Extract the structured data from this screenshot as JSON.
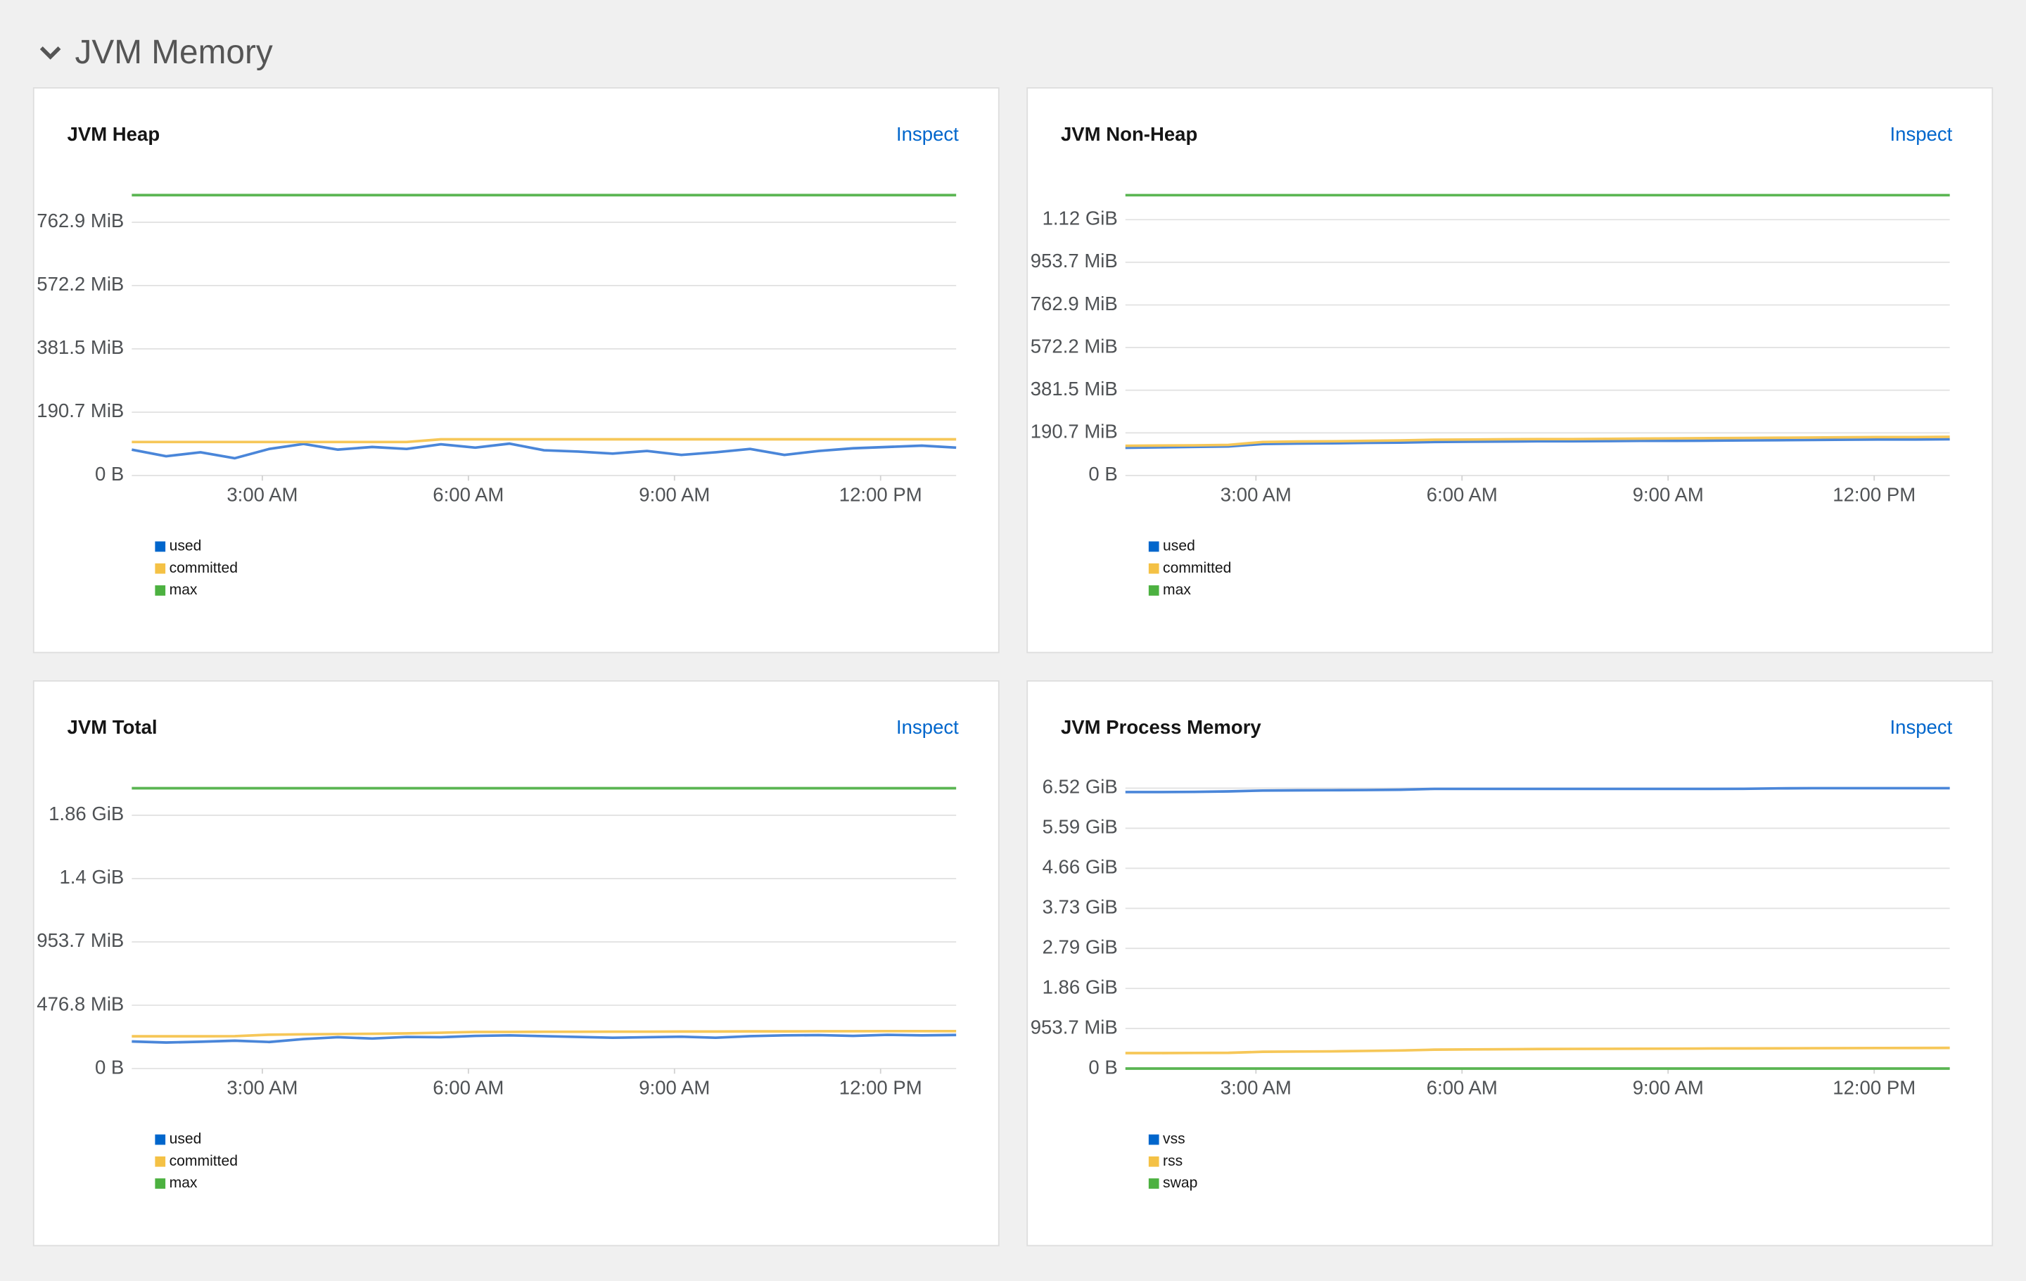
{
  "section_title": "JVM Memory",
  "chart_data": [
    {
      "type": "line",
      "title": "JVM Heap",
      "link": "Inspect",
      "grid": true,
      "x": [
        1.1,
        1.6,
        2.1,
        2.6,
        3.1,
        3.6,
        4.1,
        4.6,
        5.1,
        5.6,
        6.1,
        6.6,
        7.1,
        7.6,
        8.1,
        8.6,
        9.1,
        9.6,
        10.1,
        10.6,
        11.1,
        11.6,
        12.1,
        12.6,
        13.1
      ],
      "xlim": [
        1.1,
        13.1
      ],
      "xticks": [
        {
          "value": 3,
          "label": "3:00 AM"
        },
        {
          "value": 6,
          "label": "6:00 AM"
        },
        {
          "value": 9,
          "label": "9:00 AM"
        },
        {
          "value": 12,
          "label": "12:00 PM"
        }
      ],
      "ylim": [
        0,
        864
      ],
      "yticks": [
        {
          "value": 0,
          "label": "0 B"
        },
        {
          "value": 190.7,
          "label": "190.7 MiB"
        },
        {
          "value": 381.5,
          "label": "381.5 MiB"
        },
        {
          "value": 572.2,
          "label": "572.2 MiB"
        },
        {
          "value": 762.9,
          "label": "762.9 MiB"
        }
      ],
      "series": [
        {
          "name": "used",
          "color": "#4a86d9",
          "legend_color": "#0066cc",
          "values": [
            78,
            58,
            70,
            52,
            80,
            95,
            78,
            86,
            80,
            94,
            84,
            96,
            76,
            72,
            66,
            74,
            62,
            70,
            80,
            62,
            74,
            82,
            86,
            90,
            84
          ]
        },
        {
          "name": "committed",
          "color": "#f6c758",
          "legend_color": "#f4c145",
          "values": [
            101,
            101,
            101,
            101,
            101,
            101,
            101,
            101,
            101,
            109,
            109,
            109,
            109,
            109,
            109,
            109,
            109,
            109,
            109,
            109,
            109,
            109,
            109,
            109,
            109
          ]
        },
        {
          "name": "max",
          "color": "#5ab552",
          "legend_color": "#4cb140",
          "values": [
            844.5,
            844.5,
            844.5,
            844.5,
            844.5,
            844.5,
            844.5,
            844.5,
            844.5,
            844.5,
            844.5,
            844.5,
            844.5,
            844.5,
            844.5,
            844.5,
            844.5,
            844.5,
            844.5,
            844.5,
            844.5,
            844.5,
            844.5,
            844.5,
            844.5
          ]
        }
      ]
    },
    {
      "type": "line",
      "title": "JVM Non-Heap",
      "link": "Inspect",
      "grid": true,
      "x": [
        1.1,
        1.6,
        2.1,
        2.6,
        3.1,
        3.6,
        4.1,
        4.6,
        5.1,
        5.6,
        6.1,
        6.6,
        7.1,
        7.6,
        8.1,
        8.6,
        9.1,
        9.6,
        10.1,
        10.6,
        11.1,
        11.6,
        12.1,
        12.6,
        13.1
      ],
      "xlim": [
        1.1,
        13.1
      ],
      "xticks": [
        {
          "value": 3,
          "label": "3:00 AM"
        },
        {
          "value": 6,
          "label": "6:00 AM"
        },
        {
          "value": 9,
          "label": "9:00 AM"
        },
        {
          "value": 12,
          "label": "12:00 PM"
        }
      ],
      "ylim": [
        0,
        1283
      ],
      "yticks": [
        {
          "value": 0,
          "label": "0 B"
        },
        {
          "value": 190.7,
          "label": "190.7 MiB"
        },
        {
          "value": 381.5,
          "label": "381.5 MiB"
        },
        {
          "value": 572.2,
          "label": "572.2 MiB"
        },
        {
          "value": 762.9,
          "label": "762.9 MiB"
        },
        {
          "value": 953.7,
          "label": "953.7 MiB"
        },
        {
          "value": 1144.4,
          "label": "1.12 GiB"
        }
      ],
      "series": [
        {
          "name": "used",
          "color": "#4a86d9",
          "legend_color": "#0066cc",
          "values": [
            124,
            126,
            128,
            130,
            141,
            143,
            144,
            146,
            147,
            150,
            151,
            152,
            153,
            153,
            154,
            155,
            155,
            156,
            157,
            158,
            159,
            160,
            161,
            161,
            162
          ]
        },
        {
          "name": "committed",
          "color": "#f6c758",
          "legend_color": "#f4c145",
          "values": [
            133,
            134,
            135,
            137,
            150,
            152,
            153,
            155,
            157,
            160,
            161,
            162,
            163,
            163,
            164,
            165,
            166,
            167,
            168,
            169,
            170,
            171,
            172,
            172,
            173
          ]
        },
        {
          "name": "max",
          "color": "#5ab552",
          "legend_color": "#4cb140",
          "values": [
            1254,
            1254,
            1254,
            1254,
            1254,
            1254,
            1254,
            1254,
            1254,
            1254,
            1254,
            1254,
            1254,
            1254,
            1254,
            1254,
            1254,
            1254,
            1254,
            1254,
            1254,
            1254,
            1254,
            1254,
            1254
          ]
        }
      ]
    },
    {
      "type": "line",
      "title": "JVM Total",
      "link": "Inspect",
      "grid": true,
      "x": [
        1.1,
        1.6,
        2.1,
        2.6,
        3.1,
        3.6,
        4.1,
        4.6,
        5.1,
        5.6,
        6.1,
        6.6,
        7.1,
        7.6,
        8.1,
        8.6,
        9.1,
        9.6,
        10.1,
        10.6,
        11.1,
        11.6,
        12.1,
        12.6,
        13.1
      ],
      "xlim": [
        1.1,
        13.1
      ],
      "xticks": [
        {
          "value": 3,
          "label": "3:00 AM"
        },
        {
          "value": 6,
          "label": "6:00 AM"
        },
        {
          "value": 9,
          "label": "9:00 AM"
        },
        {
          "value": 12,
          "label": "12:00 PM"
        }
      ],
      "ylim": [
        0,
        2160
      ],
      "yticks": [
        {
          "value": 0,
          "label": "0 B"
        },
        {
          "value": 476.8,
          "label": "476.8 MiB"
        },
        {
          "value": 953.7,
          "label": "953.7 MiB"
        },
        {
          "value": 1430.5,
          "label": "1.4 GiB"
        },
        {
          "value": 1907.3,
          "label": "1.86 GiB"
        }
      ],
      "series": [
        {
          "name": "used",
          "color": "#4a86d9",
          "legend_color": "#0066cc",
          "values": [
            204,
            196,
            202,
            210,
            200,
            222,
            236,
            226,
            238,
            236,
            246,
            250,
            244,
            238,
            232,
            236,
            240,
            232,
            244,
            250,
            252,
            246,
            254,
            250,
            253
          ]
        },
        {
          "name": "committed",
          "color": "#f6c758",
          "legend_color": "#f4c145",
          "values": [
            243,
            243,
            243,
            244,
            255,
            258,
            260,
            262,
            265,
            270,
            276,
            276,
            277,
            277,
            278,
            278,
            279,
            279,
            280,
            280,
            281,
            281,
            282,
            282,
            282
          ]
        },
        {
          "name": "max",
          "color": "#5ab552",
          "legend_color": "#4cb140",
          "values": [
            2111,
            2111,
            2111,
            2111,
            2111,
            2111,
            2111,
            2111,
            2111,
            2111,
            2111,
            2111,
            2111,
            2111,
            2111,
            2111,
            2111,
            2111,
            2111,
            2111,
            2111,
            2111,
            2111,
            2111,
            2111
          ]
        }
      ]
    },
    {
      "type": "line",
      "title": "JVM Process Memory",
      "link": "Inspect",
      "grid": true,
      "x": [
        1.1,
        1.6,
        2.1,
        2.6,
        3.1,
        3.6,
        4.1,
        4.6,
        5.1,
        5.6,
        6.1,
        6.6,
        7.1,
        7.6,
        8.1,
        8.6,
        9.1,
        9.6,
        10.1,
        10.6,
        11.1,
        11.6,
        12.1,
        12.6,
        13.1
      ],
      "xlim": [
        1.1,
        13.1
      ],
      "xticks": [
        {
          "value": 3,
          "label": "3:00 AM"
        },
        {
          "value": 6,
          "label": "6:00 AM"
        },
        {
          "value": 9,
          "label": "9:00 AM"
        },
        {
          "value": 12,
          "label": "12:00 PM"
        }
      ],
      "ylim": [
        0,
        6830
      ],
      "yticks": [
        {
          "value": 0,
          "label": "0 B"
        },
        {
          "value": 953.7,
          "label": "953.7 MiB"
        },
        {
          "value": 1907.3,
          "label": "1.86 GiB"
        },
        {
          "value": 2861,
          "label": "2.79 GiB"
        },
        {
          "value": 3814.7,
          "label": "3.73 GiB"
        },
        {
          "value": 4768.4,
          "label": "4.66 GiB"
        },
        {
          "value": 5722,
          "label": "5.59 GiB"
        },
        {
          "value": 6675.8,
          "label": "6.52 GiB"
        }
      ],
      "series": [
        {
          "name": "vss",
          "color": "#4a86d9",
          "legend_color": "#0066cc",
          "values": [
            6584,
            6584,
            6588,
            6600,
            6620,
            6625,
            6628,
            6632,
            6640,
            6660,
            6660,
            6660,
            6660,
            6660,
            6660,
            6660,
            6660,
            6660,
            6662,
            6672,
            6676,
            6676,
            6676,
            6676,
            6676
          ]
        },
        {
          "name": "rss",
          "color": "#f6c758",
          "legend_color": "#f4c145",
          "values": [
            369,
            369,
            372,
            375,
            400,
            405,
            410,
            420,
            430,
            450,
            455,
            460,
            465,
            468,
            470,
            472,
            475,
            478,
            480,
            482,
            485,
            487,
            489,
            490,
            492
          ]
        },
        {
          "name": "swap",
          "color": "#5ab552",
          "legend_color": "#4cb140",
          "values": [
            0,
            0,
            0,
            0,
            0,
            0,
            0,
            0,
            0,
            0,
            0,
            0,
            0,
            0,
            0,
            0,
            0,
            0,
            0,
            0,
            0,
            0,
            0,
            0,
            0
          ]
        }
      ]
    }
  ]
}
